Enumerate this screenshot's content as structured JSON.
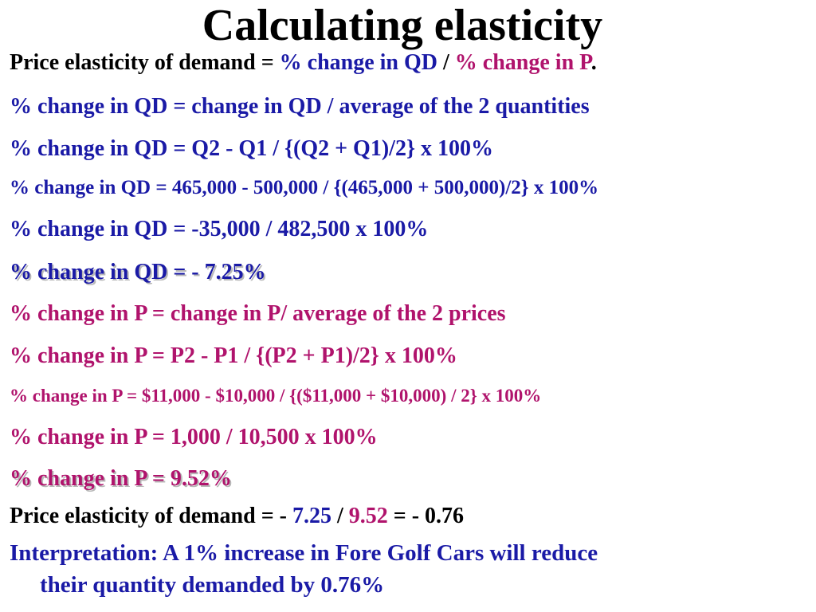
{
  "title": "Calculating elasticity",
  "colors": {
    "text": "#000000",
    "blue": "#1a1aa6",
    "magenta": "#b0136c"
  },
  "lines": {
    "l1": {
      "a": "Price elasticity of demand = ",
      "b": " % change in QD",
      "c": " / ",
      "d": "% change in P",
      "e": "."
    },
    "l2": "% change in QD = change in QD / average of the 2 quantities",
    "l3": "% change in QD = Q2 - Q1 / {(Q2 + Q1)/2}    x   100%",
    "l4": "% change in QD = 465,000 - 500,000 / {(465,000 + 500,000)/2}   x 100%",
    "l5": "% change in QD =  -35,000 / 482,500     x  100%",
    "l6": "% change in QD =   - 7.25%",
    "l7": "% change in P = change in P/ average of the 2 prices",
    "l8": "% change in P = P2 - P1 / {(P2 + P1)/2}        x 100%",
    "l9": "% change in P =  $11,000 - $10,000 / {($11,000 + $10,000) / 2}   x 100%",
    "l10": "% change in P =  1,000 / 10,500     x  100%",
    "l11": "% change in P =  9.52%",
    "l12": {
      "a": "Price elasticity of demand =  - ",
      "b": "7.25",
      "c": " / ",
      "d": "9.52",
      "e": " =  - 0.76"
    },
    "interp1": "Interpretation: A 1% increase in Fore Golf Cars  will reduce",
    "interp2": "their quantity demanded by 0.76%"
  }
}
